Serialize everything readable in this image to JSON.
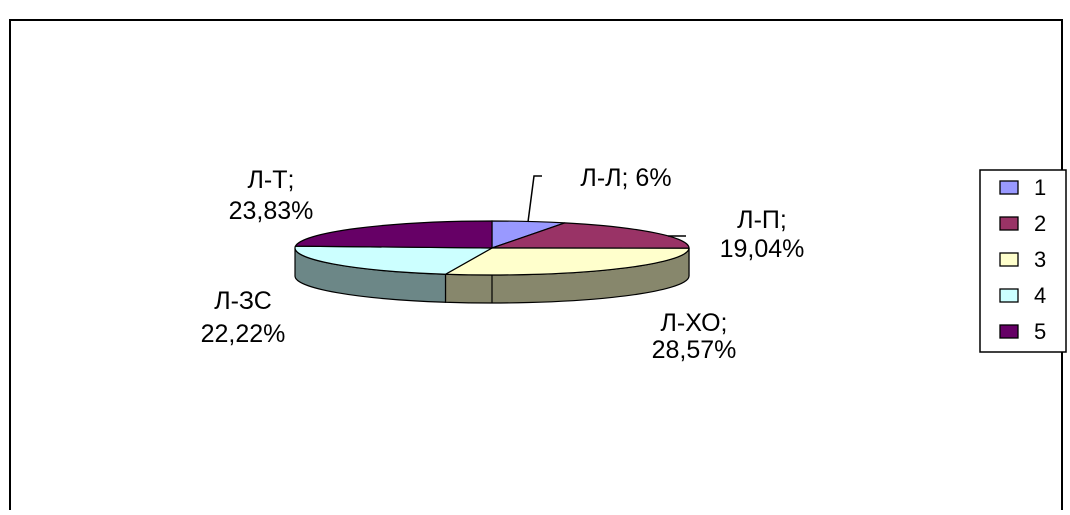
{
  "chart_data": {
    "type": "pie",
    "style": "3d-exploded-none",
    "title": "",
    "categories": [
      "1",
      "2",
      "3",
      "4",
      "5"
    ],
    "slices": [
      {
        "legend": "1",
        "name": "Л-Л",
        "value_label": "6%",
        "label_line1": "Л-Л;",
        "label_line2": "6%",
        "value": 6.0,
        "color": "#9999FF",
        "side_color": "#6B6BB3"
      },
      {
        "legend": "2",
        "name": "Л-П",
        "value_label": "19,04%",
        "label_line1": "Л-П;",
        "label_line2": "19,04%",
        "value": 19.04,
        "color": "#993366",
        "side_color": "#6B2447"
      },
      {
        "legend": "3",
        "name": "Л-ХО",
        "value_label": "28,57%",
        "label_line1": "Л-ХО;",
        "label_line2": "28,57%",
        "value": 28.57,
        "color": "#FFFFCC",
        "side_color": "#87876C"
      },
      {
        "legend": "4",
        "name": "Л-ЗС",
        "value_label": "22,22%",
        "label_line1": "Л-ЗС",
        "label_line2": "22,22%",
        "value": 22.22,
        "color": "#CCFFFF",
        "side_color": "#6C8787"
      },
      {
        "legend": "5",
        "name": "Л-Т",
        "value_label": "23,83%",
        "label_line1": "Л-Т;",
        "label_line2": "23,83%",
        "value": 23.83,
        "color": "#660066",
        "side_color": "#470047"
      }
    ],
    "legend_position": "right"
  }
}
